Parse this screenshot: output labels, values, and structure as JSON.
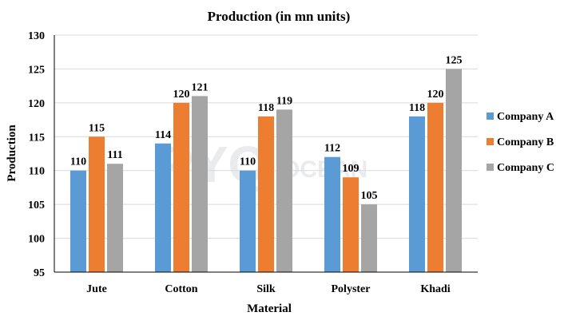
{
  "chart_data": {
    "type": "bar",
    "title": "Production (in mn units)",
    "xlabel": "Material",
    "ylabel": "Production",
    "categories": [
      "Jute",
      "Cotton",
      "Silk",
      "Polyster",
      "Khadi"
    ],
    "series": [
      {
        "name": "Company A",
        "color": "#5b9bd5",
        "values": [
          110,
          114,
          110,
          112,
          118
        ]
      },
      {
        "name": "Company B",
        "color": "#ed7d31",
        "values": [
          115,
          120,
          118,
          109,
          120
        ]
      },
      {
        "name": "Company C",
        "color": "#a5a5a5",
        "values": [
          111,
          121,
          119,
          105,
          125
        ]
      }
    ],
    "ylim": [
      95,
      130
    ],
    "yticks": [
      95,
      100,
      105,
      110,
      115,
      120,
      125,
      130
    ],
    "grid": true,
    "legend_position": "right"
  },
  "watermark": {
    "text_main": "PYQ",
    "text_sub": "OCEAN"
  }
}
